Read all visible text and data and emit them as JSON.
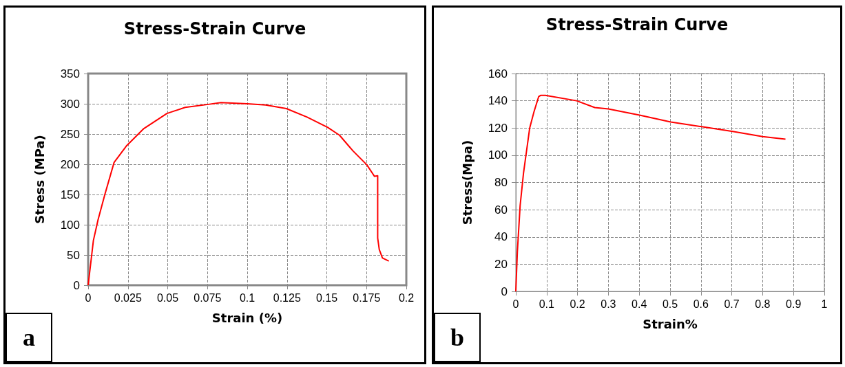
{
  "chart_data": [
    {
      "type": "line",
      "title": "Stress-Strain Curve",
      "xlabel": "Strain (%)",
      "ylabel": "Stress (MPa)",
      "annotations": [
        "a"
      ],
      "x": [
        0,
        0.0033,
        0.0062,
        0.0105,
        0.0163,
        0.0243,
        0.035,
        0.0495,
        0.061,
        0.0755,
        0.0835,
        0.1,
        0.1116,
        0.1246,
        0.1376,
        0.1506,
        0.158,
        0.1665,
        0.1752,
        0.18,
        0.182,
        0.182,
        0.183,
        0.185,
        0.189
      ],
      "series": [
        {
          "color": "#ff0000",
          "values": [
            0,
            74,
            108,
            150,
            203,
            231,
            259,
            284,
            294,
            299,
            302,
            300,
            298,
            292,
            278,
            261,
            248,
            222,
            199,
            180,
            181,
            78,
            59,
            45,
            40
          ]
        }
      ],
      "xlim": [
        0,
        0.2
      ],
      "xticks": [
        0,
        0.025,
        0.05,
        0.075,
        0.1,
        0.125,
        0.15,
        0.175,
        0.2
      ],
      "ylim": [
        0,
        350
      ],
      "yticks": [
        0,
        50,
        100,
        150,
        200,
        250,
        300,
        350
      ],
      "grid": true,
      "marker": "none",
      "line_style": "solid"
    },
    {
      "type": "line",
      "title": "Stress-Strain Curve",
      "xlabel": "Strain%",
      "ylabel": "Stress(Mpa)",
      "annotations": [
        "b"
      ],
      "x": [
        0,
        0.005,
        0.014,
        0.025,
        0.045,
        0.059,
        0.074,
        0.081,
        0.096,
        0.197,
        0.256,
        0.3,
        0.401,
        0.502,
        0.602,
        0.703,
        0.8,
        0.874
      ],
      "series": [
        {
          "color": "#ff0000",
          "values": [
            0,
            29,
            63,
            87,
            120,
            132,
            143,
            144,
            144,
            140,
            135,
            134,
            129.5,
            124.4,
            121,
            117.5,
            113.7,
            111.8
          ]
        }
      ],
      "xlim": [
        0,
        1
      ],
      "xticks": [
        0,
        0.1,
        0.2,
        0.3,
        0.4,
        0.5,
        0.6,
        0.7,
        0.8,
        0.9,
        1
      ],
      "ylim": [
        0,
        160
      ],
      "yticks": [
        0,
        20,
        40,
        60,
        80,
        100,
        120,
        140,
        160
      ],
      "grid": true,
      "marker": "none",
      "line_style": "solid"
    }
  ]
}
